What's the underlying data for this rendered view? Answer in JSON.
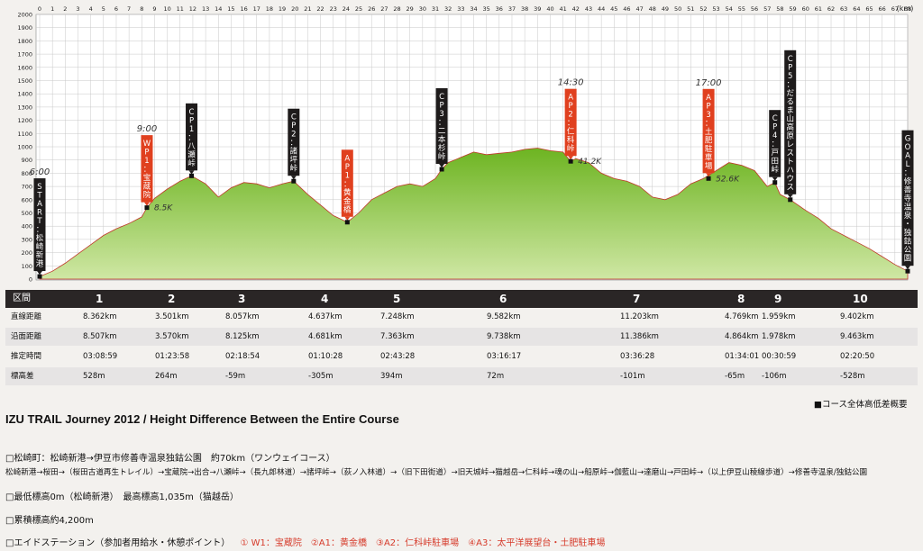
{
  "chart_data": {
    "type": "area",
    "x_unit_label": "(km)",
    "xlim": [
      0,
      68
    ],
    "ylim": [
      0,
      2000
    ],
    "y_ticks": [
      0,
      100,
      200,
      300,
      400,
      500,
      600,
      700,
      800,
      900,
      1000,
      1100,
      1200,
      1300,
      1400,
      1500,
      1600,
      1700,
      1800,
      1900,
      2000
    ],
    "x_ticks": [
      0,
      1,
      2,
      3,
      4,
      5,
      6,
      7,
      8,
      9,
      10,
      11,
      12,
      13,
      14,
      15,
      16,
      17,
      18,
      19,
      20,
      21,
      22,
      23,
      24,
      25,
      26,
      27,
      28,
      29,
      30,
      31,
      32,
      33,
      34,
      35,
      36,
      37,
      38,
      39,
      40,
      41,
      42,
      43,
      44,
      45,
      46,
      47,
      48,
      49,
      50,
      51,
      52,
      53,
      54,
      55,
      56,
      57,
      58,
      59,
      60,
      61,
      62,
      63,
      64,
      65,
      66,
      67,
      68
    ],
    "profile": [
      [
        0,
        20
      ],
      [
        1,
        60
      ],
      [
        2,
        120
      ],
      [
        3,
        190
      ],
      [
        4,
        260
      ],
      [
        5,
        330
      ],
      [
        6,
        380
      ],
      [
        7,
        420
      ],
      [
        8,
        470
      ],
      [
        8.4,
        540
      ],
      [
        9,
        610
      ],
      [
        10,
        680
      ],
      [
        11,
        740
      ],
      [
        11.9,
        780
      ],
      [
        13,
        720
      ],
      [
        14,
        620
      ],
      [
        15,
        690
      ],
      [
        16,
        730
      ],
      [
        17,
        720
      ],
      [
        18,
        690
      ],
      [
        19,
        720
      ],
      [
        19.9,
        740
      ],
      [
        21,
        640
      ],
      [
        22,
        560
      ],
      [
        23,
        480
      ],
      [
        24.1,
        430
      ],
      [
        25,
        500
      ],
      [
        26,
        600
      ],
      [
        27,
        650
      ],
      [
        28,
        700
      ],
      [
        29,
        720
      ],
      [
        30,
        700
      ],
      [
        31,
        760
      ],
      [
        31.5,
        830
      ],
      [
        32,
        880
      ],
      [
        33,
        920
      ],
      [
        34,
        960
      ],
      [
        35,
        940
      ],
      [
        36,
        950
      ],
      [
        37,
        960
      ],
      [
        38,
        980
      ],
      [
        39,
        990
      ],
      [
        40,
        970
      ],
      [
        41,
        960
      ],
      [
        41.6,
        890
      ],
      [
        42,
        910
      ],
      [
        43,
        880
      ],
      [
        44,
        800
      ],
      [
        45,
        760
      ],
      [
        46,
        740
      ],
      [
        47,
        700
      ],
      [
        48,
        620
      ],
      [
        49,
        600
      ],
      [
        50,
        640
      ],
      [
        51,
        720
      ],
      [
        52,
        760
      ],
      [
        53,
        820
      ],
      [
        54,
        880
      ],
      [
        55,
        860
      ],
      [
        56,
        820
      ],
      [
        57,
        700
      ],
      [
        57.6,
        730
      ],
      [
        58,
        640
      ],
      [
        58.8,
        600
      ],
      [
        60,
        520
      ],
      [
        61,
        460
      ],
      [
        62,
        380
      ],
      [
        63,
        330
      ],
      [
        64,
        280
      ],
      [
        65,
        230
      ],
      [
        66,
        170
      ],
      [
        67,
        110
      ],
      [
        68,
        60
      ]
    ],
    "points": [
      {
        "name": "START：松崎新港",
        "km": 0,
        "elev": 20,
        "color": "black",
        "handwritten_time": "6:00"
      },
      {
        "name": "WP1：宝蔵院",
        "km": 8.4,
        "elev": 540,
        "color": "red",
        "handwritten_time": "9:00",
        "handwritten_dist": "8.5K"
      },
      {
        "name": "CP1：八瀬峠",
        "km": 11.9,
        "elev": 780,
        "color": "black"
      },
      {
        "name": "CP2：諸坪峠",
        "km": 19.9,
        "elev": 740,
        "color": "black"
      },
      {
        "name": "AP1：黄金橋",
        "km": 24.1,
        "elev": 430,
        "color": "red"
      },
      {
        "name": "CP3：二本杉峠",
        "km": 31.5,
        "elev": 830,
        "color": "black"
      },
      {
        "name": "AP2：仁科峠",
        "km": 41.6,
        "elev": 890,
        "color": "red",
        "handwritten_time": "14:30",
        "handwritten_dist": "41.2K"
      },
      {
        "name": "AP3：土肥駐車場",
        "km": 52.4,
        "elev": 760,
        "color": "red",
        "handwritten_time": "17:00",
        "handwritten_dist": "52.6K"
      },
      {
        "name": "CP4：戸田峠",
        "km": 57.6,
        "elev": 730,
        "color": "black"
      },
      {
        "name": "CP5：だるま山高原レストハウス",
        "km": 58.8,
        "elev": 600,
        "color": "black"
      },
      {
        "name": "GOAL：修善寺温泉・独鈷公園",
        "km": 68,
        "elev": 60,
        "color": "black"
      }
    ],
    "colors": {
      "fill_top": "#7cbf2a",
      "fill_bottom": "#d8ecb2",
      "red_label": "#e0401f",
      "black_label": "#1e1b1b"
    }
  },
  "table": {
    "header_label": "区間",
    "columns": [
      "1",
      "2",
      "3",
      "4",
      "5",
      "6",
      "7",
      "8",
      "9",
      "10"
    ],
    "rows": [
      {
        "label": "直線距離",
        "values": [
          "8.362km",
          "3.501km",
          "8.057km",
          "4.637km",
          "7.248km",
          "9.582km",
          "11.203km",
          "4.769km",
          "1.959km",
          "9.402km"
        ]
      },
      {
        "label": "沿面距離",
        "values": [
          "8.507km",
          "3.570km",
          "8.125km",
          "4.681km",
          "7.363km",
          "9.738km",
          "11.386km",
          "4.864km",
          "1.978km",
          "9.463km"
        ]
      },
      {
        "label": "推定時間",
        "values": [
          "03:08:59",
          "01:23:58",
          "02:18:54",
          "01:10:28",
          "02:43:28",
          "03:16:17",
          "03:36:28",
          "01:34:01",
          "00:30:59",
          "02:20:50"
        ]
      },
      {
        "label": "標高差",
        "values": [
          "528m",
          "264m",
          "-59m",
          "-305m",
          "394m",
          "72m",
          "-101m",
          "-65m",
          "-106m",
          "-528m"
        ]
      }
    ]
  },
  "overview_label": "■コース全体高低差概要",
  "title": "IZU TRAIL Journey 2012  /  Height Difference Between the Entire Course",
  "info": {
    "line1": "□松崎町：松崎新港→伊豆市修善寺温泉独鈷公園　約70km（ワンウェイコース）",
    "line2": "松崎新港→桜田→（桜田古道再生トレイル）→宝蔵院→出合→八瀬峠→（長九郎林道）→諸坪峠→（荻ノ入林道）→（旧下田街道）→旧天城峠→猫越岳→仁科峠→魂の山→船原峠→伽藍山→達磨山→戸田峠→（以上伊豆山稜線歩道）→修善寺温泉/独鈷公園",
    "line3": "□最低標高0m（松崎新港）　最高標高1,035m（猫越岳）",
    "line4": "□累積標高約4,200m",
    "line5_prefix": "□エイドステーション（参加者用給水・休憩ポイント）",
    "line5_aid": "① W1：宝蔵院　②A1：黄金橋　③A2：仁科峠駐車場　④A3：太平洋展望台・土肥駐車場"
  }
}
